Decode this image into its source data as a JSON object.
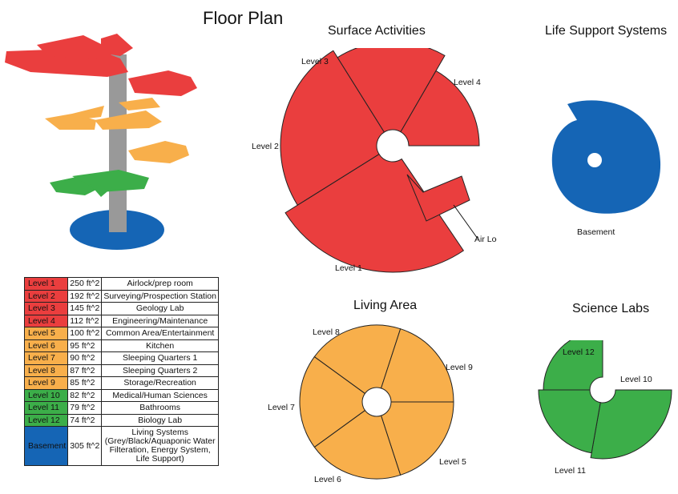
{
  "title": "Floor Plan",
  "colors": {
    "red": "#ea3e3e",
    "orange": "#f8af4b",
    "green": "#3cae49",
    "blue": "#1565b5",
    "grey": "#999999"
  },
  "sections": {
    "surface": {
      "title": "Surface Activities",
      "labels": {
        "l1": "Level 1",
        "l2": "Level 2",
        "l3": "Level 3",
        "l4": "Level 4",
        "airlock": "Air Lock"
      }
    },
    "life": {
      "title": "Life Support Systems",
      "labels": {
        "basement": "Basement"
      }
    },
    "living": {
      "title": "Living Area",
      "labels": {
        "l5": "Level 5",
        "l6": "Level 6",
        "l7": "Level 7",
        "l8": "Level 8",
        "l9": "Level 9"
      }
    },
    "science": {
      "title": "Science Labs",
      "labels": {
        "l10": "Level 10",
        "l11": "Level 11",
        "l12": "Level 12"
      }
    }
  },
  "table": {
    "rows": [
      {
        "level": "Level 1",
        "area": "250 ft^2",
        "use": "Airlock/prep room",
        "color": "red"
      },
      {
        "level": "Level 2",
        "area": "192 ft^2",
        "use": "Surveying/Prospection Station",
        "color": "red"
      },
      {
        "level": "Level 3",
        "area": "145 ft^2",
        "use": "Geology Lab",
        "color": "red"
      },
      {
        "level": "Level 4",
        "area": "112 ft^2",
        "use": "Engineering/Maintenance",
        "color": "red"
      },
      {
        "level": "Level 5",
        "area": "100 ft^2",
        "use": "Common Area/Entertainment",
        "color": "orange"
      },
      {
        "level": "Level 6",
        "area": "95 ft^2",
        "use": "Kitchen",
        "color": "orange"
      },
      {
        "level": "Level 7",
        "area": "90 ft^2",
        "use": "Sleeping Quarters 1",
        "color": "orange"
      },
      {
        "level": "Level 8",
        "area": "87 ft^2",
        "use": "Sleeping Quarters 2",
        "color": "orange"
      },
      {
        "level": "Level 9",
        "area": "85 ft^2",
        "use": "Storage/Recreation",
        "color": "orange"
      },
      {
        "level": "Level 10",
        "area": "82 ft^2",
        "use": "Medical/Human Sciences",
        "color": "green"
      },
      {
        "level": "Level 11",
        "area": "79 ft^2",
        "use": "Bathrooms",
        "color": "green"
      },
      {
        "level": "Level 12",
        "area": "74 ft^2",
        "use": "Biology Lab",
        "color": "green"
      },
      {
        "level": "Basement",
        "area": "305 ft^2",
        "use": "Living Systems (Grey/Black/Aquaponic Water Filteration, Energy System, Life Support)",
        "color": "blue"
      }
    ]
  }
}
